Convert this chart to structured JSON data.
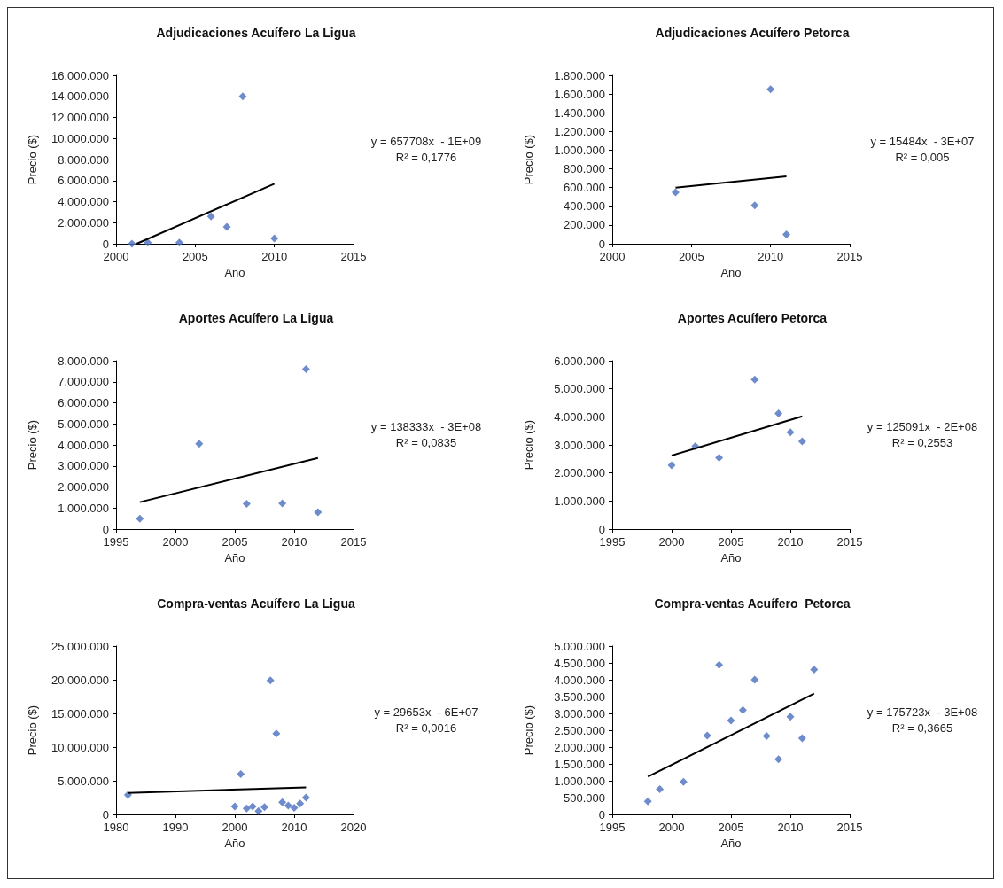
{
  "chart_data": [
    {
      "type": "scatter",
      "title": "Adjudicaciones Acuífero La Ligua",
      "xlabel": "Año",
      "ylabel": "Precio ($)",
      "xlim": [
        2000,
        2015
      ],
      "xticks": [
        2000,
        2005,
        2010,
        2015
      ],
      "ylim": [
        0,
        16000000
      ],
      "yticks": [
        {
          "value": 0,
          "label": "0"
        },
        {
          "value": 2000000,
          "label": "2.000.000"
        },
        {
          "value": 4000000,
          "label": "4.000.000"
        },
        {
          "value": 6000000,
          "label": "6.000.000"
        },
        {
          "value": 8000000,
          "label": "8.000.000"
        },
        {
          "value": 10000000,
          "label": "10.000.000"
        },
        {
          "value": 12000000,
          "label": "12.000.000"
        },
        {
          "value": 14000000,
          "label": "14.000.000"
        },
        {
          "value": 16000000,
          "label": "16.000.000"
        }
      ],
      "series": [
        {
          "type": "scatter",
          "marker": "diamond",
          "color": "#4a6fbf",
          "x": [
            2001,
            2002,
            2004,
            2006,
            2007,
            2008,
            2010
          ],
          "values": [
            0,
            100000,
            100000,
            2600000,
            1600000,
            14000000,
            500000
          ]
        },
        {
          "type": "line",
          "marker": "none",
          "color": "#000000",
          "x": [
            2001.3,
            2010
          ],
          "values": [
            0,
            5700000
          ]
        }
      ],
      "annotations": [
        "y = 657708x  - 1E+09",
        "R² = 0,1776"
      ]
    },
    {
      "type": "scatter",
      "title": "Adjudicaciones Acuífero Petorca",
      "xlabel": "Año",
      "ylabel": "Precio ($)",
      "xlim": [
        2000,
        2015
      ],
      "xticks": [
        2000,
        2005,
        2010,
        2015
      ],
      "ylim": [
        0,
        1800000
      ],
      "yticks": [
        {
          "value": 0,
          "label": "0"
        },
        {
          "value": 200000,
          "label": "200.000"
        },
        {
          "value": 400000,
          "label": "400.000"
        },
        {
          "value": 600000,
          "label": "600.000"
        },
        {
          "value": 800000,
          "label": "800.000"
        },
        {
          "value": 1000000,
          "label": "1.000.000"
        },
        {
          "value": 1200000,
          "label": "1.200.000"
        },
        {
          "value": 1400000,
          "label": "1.400.000"
        },
        {
          "value": 1600000,
          "label": "1.600.000"
        },
        {
          "value": 1800000,
          "label": "1.800.000"
        }
      ],
      "series": [
        {
          "type": "scatter",
          "marker": "diamond",
          "color": "#4a6fbf",
          "x": [
            2004,
            2009,
            2010,
            2011
          ],
          "values": [
            550000,
            410000,
            1650000,
            100000
          ]
        },
        {
          "type": "line",
          "marker": "none",
          "color": "#000000",
          "x": [
            2004,
            2011
          ],
          "values": [
            600000,
            720000
          ]
        }
      ],
      "annotations": [
        "y = 15484x  - 3E+07",
        "R² = 0,005"
      ]
    },
    {
      "type": "scatter",
      "title": "Aportes Acuífero La Ligua",
      "xlabel": "Año",
      "ylabel": "Precio ($)",
      "xlim": [
        1995,
        2015
      ],
      "xticks": [
        1995,
        2000,
        2005,
        2010,
        2015
      ],
      "ylim": [
        0,
        8000000
      ],
      "yticks": [
        {
          "value": 0,
          "label": "0"
        },
        {
          "value": 1000000,
          "label": "1.000.000"
        },
        {
          "value": 2000000,
          "label": "2.000.000"
        },
        {
          "value": 3000000,
          "label": "3.000.000"
        },
        {
          "value": 4000000,
          "label": "4.000.000"
        },
        {
          "value": 5000000,
          "label": "5.000.000"
        },
        {
          "value": 6000000,
          "label": "6.000.000"
        },
        {
          "value": 7000000,
          "label": "7.000.000"
        },
        {
          "value": 8000000,
          "label": "8.000.000"
        }
      ],
      "series": [
        {
          "type": "scatter",
          "marker": "diamond",
          "color": "#4a6fbf",
          "x": [
            1997,
            2002,
            2006,
            2009,
            2011,
            2012
          ],
          "values": [
            500000,
            4050000,
            1200000,
            1220000,
            7600000,
            800000
          ]
        },
        {
          "type": "line",
          "marker": "none",
          "color": "#000000",
          "x": [
            1997,
            2012
          ],
          "values": [
            1280000,
            3380000
          ]
        }
      ],
      "annotations": [
        "y = 138333x  - 3E+08",
        "R² = 0,0835"
      ]
    },
    {
      "type": "scatter",
      "title": "Aportes Acuífero Petorca",
      "xlabel": "Año",
      "ylabel": "Precio ($)",
      "xlim": [
        1995,
        2015
      ],
      "xticks": [
        1995,
        2000,
        2005,
        2010,
        2015
      ],
      "ylim": [
        0,
        6000000
      ],
      "yticks": [
        {
          "value": 0,
          "label": "0"
        },
        {
          "value": 1000000,
          "label": "1.000.000"
        },
        {
          "value": 2000000,
          "label": "2.000.000"
        },
        {
          "value": 3000000,
          "label": "3.000.000"
        },
        {
          "value": 4000000,
          "label": "4.000.000"
        },
        {
          "value": 5000000,
          "label": "5.000.000"
        },
        {
          "value": 6000000,
          "label": "6.000.000"
        }
      ],
      "series": [
        {
          "type": "scatter",
          "marker": "diamond",
          "color": "#4a6fbf",
          "x": [
            2000,
            2002,
            2004,
            2007,
            2009,
            2010,
            2011
          ],
          "values": [
            2270000,
            2950000,
            2540000,
            5330000,
            4120000,
            3450000,
            3130000
          ]
        },
        {
          "type": "line",
          "marker": "none",
          "color": "#000000",
          "x": [
            2000,
            2011
          ],
          "values": [
            2620000,
            4020000
          ]
        }
      ],
      "annotations": [
        "y = 125091x  - 2E+08",
        "R² = 0,2553"
      ]
    },
    {
      "type": "scatter",
      "title": "Compra-ventas Acuífero La Ligua",
      "xlabel": "Año",
      "ylabel": "Precio ($)",
      "xlim": [
        1980,
        2020
      ],
      "xticks": [
        1980,
        1990,
        2000,
        2010,
        2020
      ],
      "ylim": [
        0,
        25000000
      ],
      "yticks": [
        {
          "value": 0,
          "label": "0"
        },
        {
          "value": 5000000,
          "label": "5.000.000"
        },
        {
          "value": 10000000,
          "label": "10.000.000"
        },
        {
          "value": 15000000,
          "label": "15.000.000"
        },
        {
          "value": 20000000,
          "label": "20.000.000"
        },
        {
          "value": 25000000,
          "label": "25.000.000"
        }
      ],
      "series": [
        {
          "type": "scatter",
          "marker": "diamond",
          "color": "#4a6fbf",
          "x": [
            1982,
            2000,
            2001,
            2002,
            2003,
            2004,
            2005,
            2006,
            2007,
            2008,
            2009,
            2010,
            2011,
            2012
          ],
          "values": [
            2900000,
            1200000,
            6000000,
            900000,
            1200000,
            500000,
            1100000,
            19900000,
            12000000,
            1800000,
            1300000,
            1000000,
            1600000,
            2500000
          ]
        },
        {
          "type": "line",
          "marker": "none",
          "color": "#000000",
          "x": [
            1982,
            2012
          ],
          "values": [
            3200000,
            4000000
          ]
        }
      ],
      "annotations": [
        "y = 29653x  - 6E+07",
        "R² = 0,0016"
      ]
    },
    {
      "type": "scatter",
      "title": "Compra-ventas Acuífero  Petorca",
      "xlabel": "Año",
      "ylabel": "Precio ($)",
      "xlim": [
        1995,
        2015
      ],
      "xticks": [
        1995,
        2000,
        2005,
        2010,
        2015
      ],
      "ylim": [
        0,
        5000000
      ],
      "yticks": [
        {
          "value": 0,
          "label": "0"
        },
        {
          "value": 500000,
          "label": "500.000"
        },
        {
          "value": 1000000,
          "label": "1.000.000"
        },
        {
          "value": 1500000,
          "label": "1.500.000"
        },
        {
          "value": 2000000,
          "label": "2.000.000"
        },
        {
          "value": 2500000,
          "label": "2.500.000"
        },
        {
          "value": 3000000,
          "label": "3.000.000"
        },
        {
          "value": 3500000,
          "label": "3.500.000"
        },
        {
          "value": 4000000,
          "label": "4.000.000"
        },
        {
          "value": 4500000,
          "label": "4.500.000"
        },
        {
          "value": 5000000,
          "label": "5.000.000"
        }
      ],
      "series": [
        {
          "type": "scatter",
          "marker": "diamond",
          "color": "#4a6fbf",
          "x": [
            1998,
            1999,
            2001,
            2003,
            2004,
            2005,
            2006,
            2007,
            2008,
            2009,
            2010,
            2011,
            2012
          ],
          "values": [
            390000,
            750000,
            970000,
            2340000,
            4440000,
            2790000,
            3100000,
            4000000,
            2330000,
            1640000,
            2900000,
            2260000,
            4300000
          ]
        },
        {
          "type": "line",
          "marker": "none",
          "color": "#000000",
          "x": [
            1998,
            2012
          ],
          "values": [
            1120000,
            3590000
          ]
        }
      ],
      "annotations": [
        "y = 175723x  - 3E+08",
        "R² = 0,3665"
      ]
    }
  ]
}
